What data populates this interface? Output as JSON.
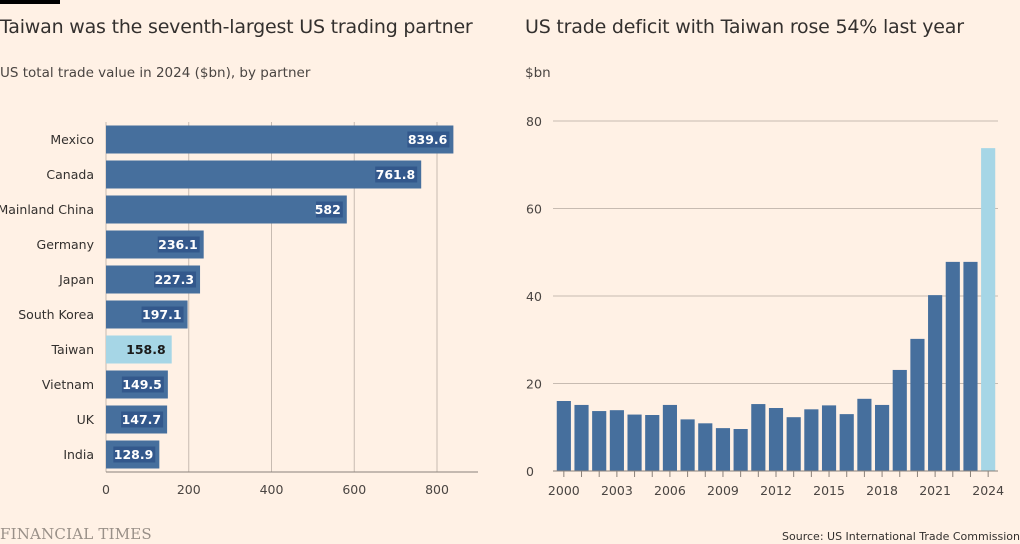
{
  "footer": {
    "logo": "FINANCIAL TIMES",
    "source": "Source: US International Trade Commission"
  },
  "colors": {
    "background": "#FFF1E5",
    "bar": "#466F9D",
    "highlight": "#A6D6E6",
    "grid": "#C7BBB1",
    "label_box": "#30558A",
    "text": "#33302E"
  },
  "chart_data": [
    {
      "type": "bar",
      "orientation": "horizontal",
      "title": "Taiwan was the seventh-largest US trading partner",
      "subtitle": "US total trade value in 2024 ($bn), by partner",
      "xlabel": "",
      "ylabel": "",
      "categories": [
        "Mexico",
        "Canada",
        "Mainland China",
        "Germany",
        "Japan",
        "South Korea",
        "Taiwan",
        "Vietnam",
        "UK",
        "India"
      ],
      "values": [
        839.6,
        761.8,
        582,
        236.1,
        227.3,
        197.1,
        158.8,
        149.5,
        147.7,
        128.9
      ],
      "data_labels": [
        "839.6",
        "761.8",
        "582",
        "236.1",
        "227.3",
        "197.1",
        "158.8",
        "149.5",
        "147.7",
        "128.9"
      ],
      "highlight": "Taiwan",
      "xlim": [
        0,
        900
      ],
      "xticks": [
        0,
        200,
        400,
        600,
        800
      ],
      "xtick_labels": [
        "0",
        "200",
        "400",
        "600",
        "800"
      ],
      "grid": true
    },
    {
      "type": "bar",
      "orientation": "vertical",
      "title": "US trade deficit with Taiwan rose 54% last year",
      "subtitle": "$bn",
      "xlabel": "",
      "ylabel": "$bn",
      "categories": [
        "2000",
        "2001",
        "2002",
        "2003",
        "2004",
        "2005",
        "2006",
        "2007",
        "2008",
        "2009",
        "2010",
        "2011",
        "2012",
        "2013",
        "2014",
        "2015",
        "2016",
        "2017",
        "2018",
        "2019",
        "2020",
        "2021",
        "2022",
        "2023",
        "2024"
      ],
      "values": [
        16.0,
        15.1,
        13.7,
        13.9,
        12.9,
        12.8,
        15.1,
        11.8,
        10.9,
        9.8,
        9.6,
        15.3,
        14.4,
        12.3,
        14.1,
        15.0,
        13.0,
        16.5,
        15.1,
        23.1,
        30.2,
        40.2,
        47.8,
        47.8,
        73.8
      ],
      "highlight": "2024",
      "ylim": [
        0,
        80
      ],
      "yticks": [
        0,
        20,
        40,
        60,
        80
      ],
      "ytick_labels": [
        "0",
        "20",
        "40",
        "60",
        "80"
      ],
      "xtick_labels_shown": [
        "2000",
        "2003",
        "2006",
        "2009",
        "2012",
        "2015",
        "2018",
        "2021",
        "2024"
      ],
      "grid": true
    }
  ]
}
